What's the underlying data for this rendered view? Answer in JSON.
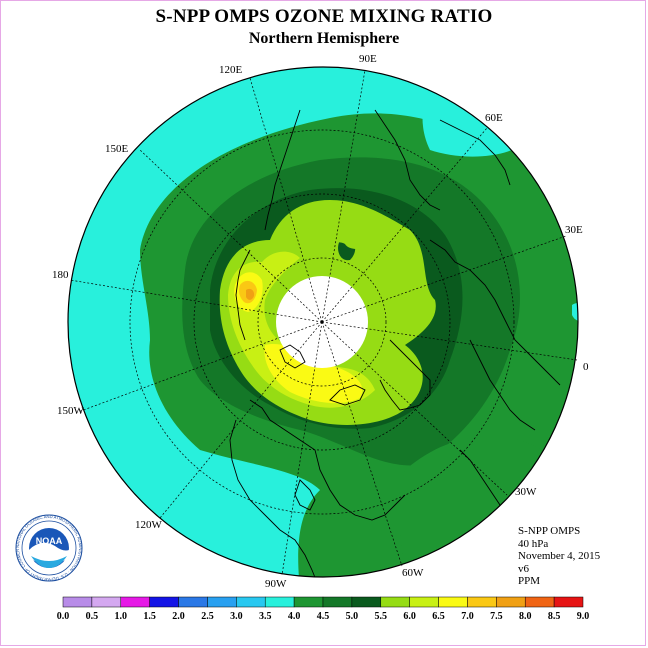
{
  "title": "S-NPP OMPS OZONE MIXING RATIO",
  "subtitle": "Northern Hemisphere",
  "longitude_labels": [
    "0",
    "30E",
    "60E",
    "90E",
    "120E",
    "150E",
    "180",
    "150W",
    "120W",
    "90W",
    "60W",
    "30W"
  ],
  "info": {
    "instrument": "S-NPP OMPS",
    "level": "40 hPa",
    "date": "November 4, 2015",
    "version": "v6",
    "units": "PPM"
  },
  "logo": {
    "text": "NOAA",
    "ring_text": "NATIONAL OCEANIC AND ATMOSPHERIC ADMINISTRATION · U.S. DEPARTMENT OF COMMERCE"
  },
  "colorbar": {
    "ticks": [
      "0.0",
      "0.5",
      "1.0",
      "1.5",
      "2.0",
      "2.5",
      "3.0",
      "3.5",
      "4.0",
      "4.5",
      "5.0",
      "5.5",
      "6.0",
      "6.5",
      "7.0",
      "7.5",
      "8.0",
      "8.5",
      "9.0"
    ],
    "colors": [
      "#b88ce8",
      "#d4a8f0",
      "#e619e6",
      "#1414e6",
      "#2a78e6",
      "#28a0f0",
      "#28c8f0",
      "#28f0dc",
      "#1e9632",
      "#147828",
      "#0a5a1e",
      "#96dc14",
      "#c8f014",
      "#fafa14",
      "#fac814",
      "#f0a014",
      "#f06414",
      "#e61414",
      "#8c5a46"
    ]
  },
  "map_colors": {
    "band_3_5_4_0": "#28f0dc",
    "band_4_0_4_5": "#1e9632",
    "band_4_5_5_0": "#147828",
    "band_5_0_5_5": "#0a5a1e",
    "band_5_5_6_0": "#96dc14",
    "band_6_0_6_5": "#c8f014",
    "band_6_5_7_0": "#fafa14",
    "band_7_0_7_5": "#fac814",
    "band_7_5_8_0": "#f0a014",
    "no_data": "#ffffff"
  }
}
